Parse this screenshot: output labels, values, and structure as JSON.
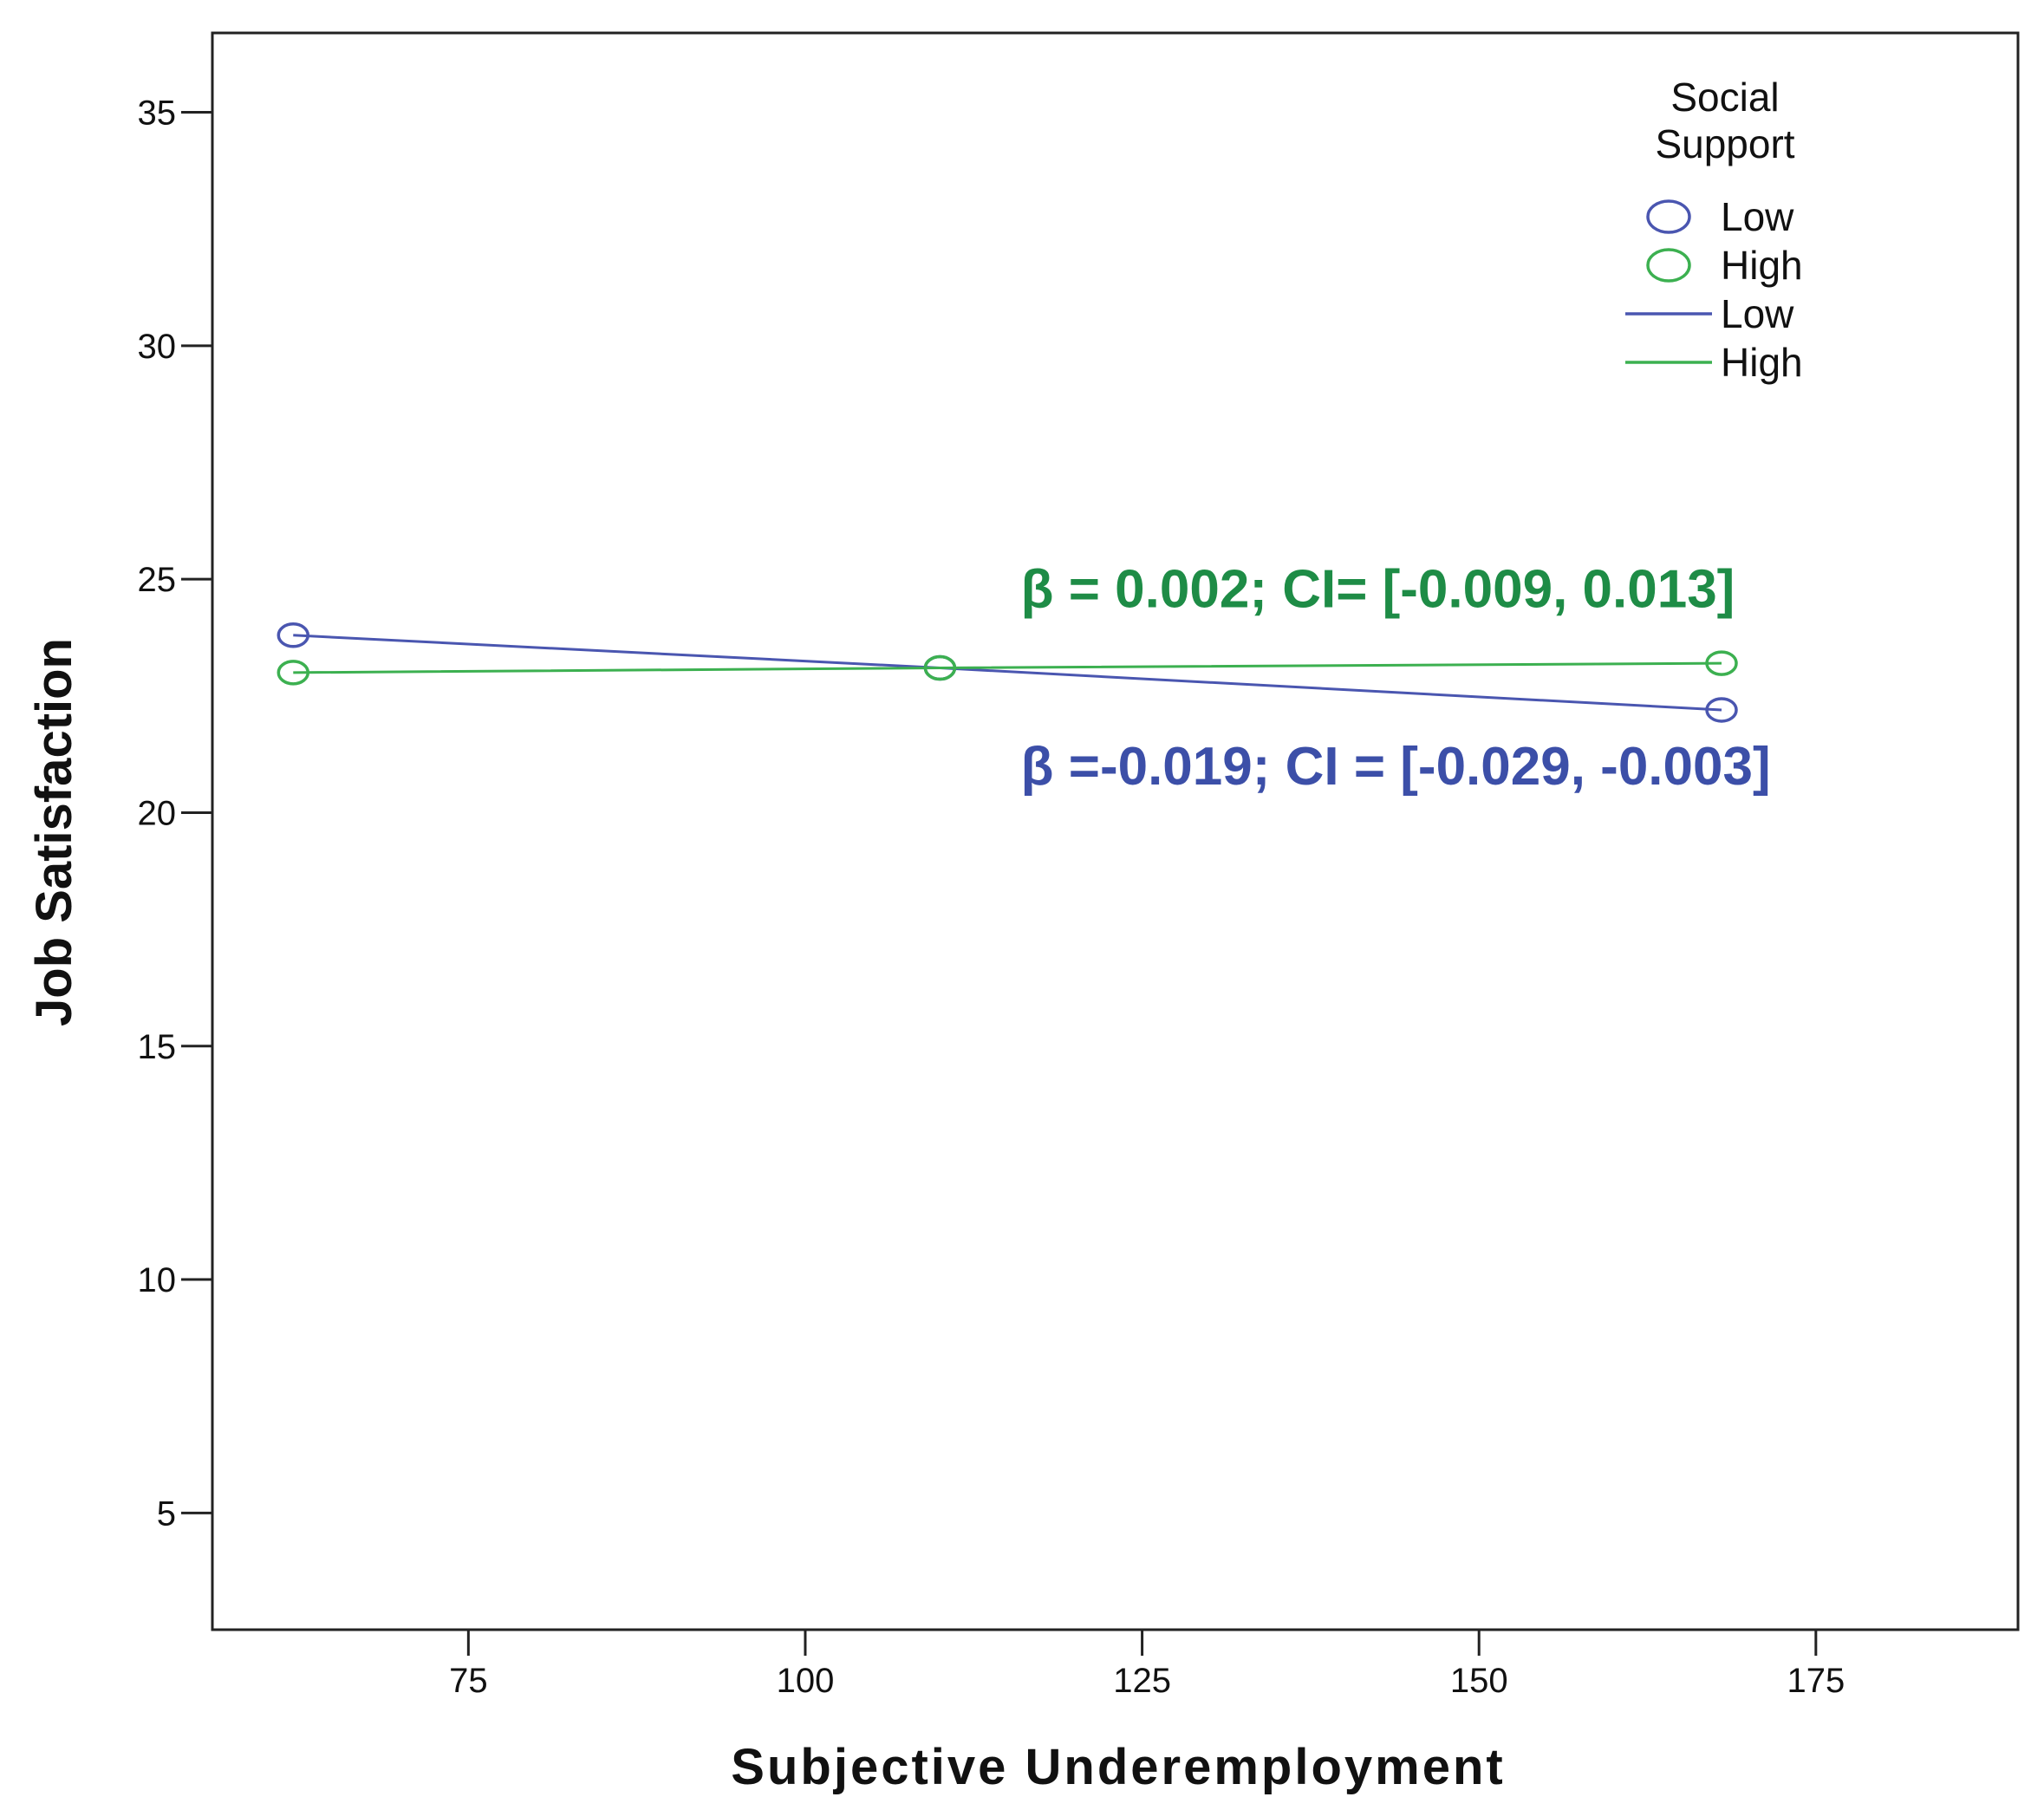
{
  "chart_data": {
    "type": "line",
    "title": "",
    "xlabel": "Subjective Underemployment",
    "ylabel": "Job Satisfaction",
    "xlim": [
      56,
      190
    ],
    "ylim": [
      2.5,
      36.7
    ],
    "xticks": [
      75,
      100,
      125,
      150,
      175
    ],
    "yticks": [
      5,
      10,
      15,
      20,
      25,
      30,
      35
    ],
    "grid": false,
    "legend": {
      "title_lines": [
        "Social",
        "Support"
      ],
      "placement": "top-right",
      "entries": [
        {
          "label": "Low",
          "kind": "marker",
          "series": 0
        },
        {
          "label": "High",
          "kind": "marker",
          "series": 1
        },
        {
          "label": "Low",
          "kind": "line",
          "series": 0
        },
        {
          "label": "High",
          "kind": "line",
          "series": 1
        }
      ]
    },
    "series": [
      {
        "name": "Low",
        "color": "#4a56b0",
        "x": [
          62,
          110,
          168
        ],
        "y": [
          23.8,
          23.1,
          22.2
        ]
      },
      {
        "name": "High",
        "color": "#3cb050",
        "x": [
          62,
          110,
          168
        ],
        "y": [
          23.0,
          23.1,
          23.2
        ]
      }
    ],
    "annotations": [
      {
        "text": "β = 0.002; CI= [-0.009, 0.013]",
        "color": "#1e8c46",
        "x": 116,
        "y": 24.4
      },
      {
        "text": "β =-0.019; CI = [-0.029, -0.003]",
        "color": "#3c4fa8",
        "x": 116,
        "y": 20.6
      }
    ]
  }
}
